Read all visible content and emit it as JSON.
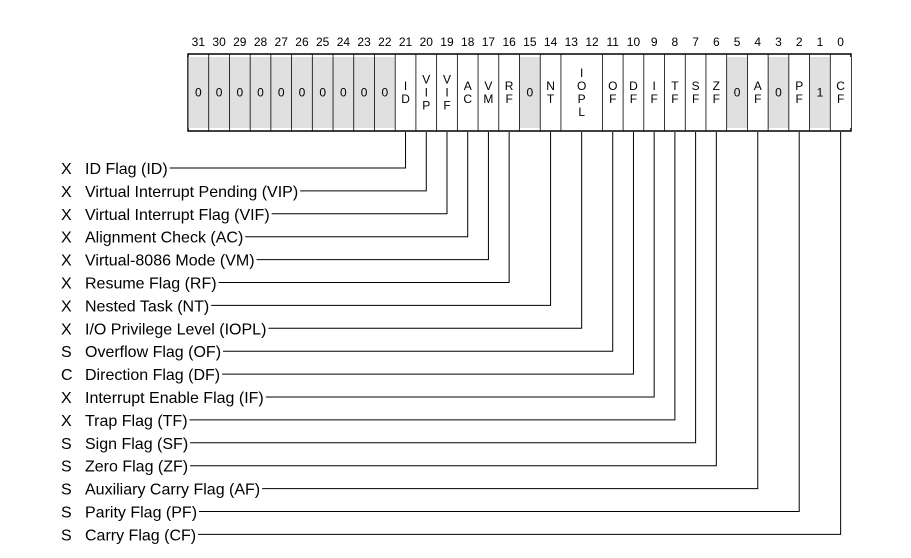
{
  "bit_numbers": [
    "31",
    "30",
    "29",
    "28",
    "27",
    "26",
    "25",
    "24",
    "23",
    "22",
    "21",
    "20",
    "19",
    "18",
    "17",
    "16",
    "15",
    "14",
    "13",
    "12",
    "11",
    "10",
    "9",
    "8",
    "7",
    "6",
    "5",
    "4",
    "3",
    "2",
    "1",
    "0"
  ],
  "cells": [
    {
      "bit": 31,
      "text": "0",
      "reserved": true
    },
    {
      "bit": 30,
      "text": "0",
      "reserved": true
    },
    {
      "bit": 29,
      "text": "0",
      "reserved": true
    },
    {
      "bit": 28,
      "text": "0",
      "reserved": true
    },
    {
      "bit": 27,
      "text": "0",
      "reserved": true
    },
    {
      "bit": 26,
      "text": "0",
      "reserved": true
    },
    {
      "bit": 25,
      "text": "0",
      "reserved": true
    },
    {
      "bit": 24,
      "text": "0",
      "reserved": true
    },
    {
      "bit": 23,
      "text": "0",
      "reserved": true
    },
    {
      "bit": 22,
      "text": "0",
      "reserved": true
    },
    {
      "bit": 21,
      "text": "ID",
      "reserved": false,
      "stacked": [
        "I",
        "D"
      ]
    },
    {
      "bit": 20,
      "text": "VIP",
      "reserved": false,
      "stacked": [
        "V",
        "I",
        "P"
      ]
    },
    {
      "bit": 19,
      "text": "VIF",
      "reserved": false,
      "stacked": [
        "V",
        "I",
        "F"
      ]
    },
    {
      "bit": 18,
      "text": "AC",
      "reserved": false,
      "stacked": [
        "A",
        "C"
      ]
    },
    {
      "bit": 17,
      "text": "VM",
      "reserved": false,
      "stacked": [
        "V",
        "M"
      ]
    },
    {
      "bit": 16,
      "text": "RF",
      "reserved": false,
      "stacked": [
        "R",
        "F"
      ]
    },
    {
      "bit": 15,
      "text": "0",
      "reserved": true
    },
    {
      "bit": 14,
      "text": "NT",
      "reserved": false,
      "stacked": [
        "N",
        "T"
      ]
    },
    {
      "bit": 13,
      "text": "IOPL",
      "reserved": false,
      "stacked": [
        "I",
        "O",
        "P",
        "L"
      ],
      "span": 2
    },
    {
      "bit": 11,
      "text": "OF",
      "reserved": false,
      "stacked": [
        "O",
        "F"
      ]
    },
    {
      "bit": 10,
      "text": "DF",
      "reserved": false,
      "stacked": [
        "D",
        "F"
      ]
    },
    {
      "bit": 9,
      "text": "IF",
      "reserved": false,
      "stacked": [
        "I",
        "F"
      ]
    },
    {
      "bit": 8,
      "text": "TF",
      "reserved": false,
      "stacked": [
        "T",
        "F"
      ]
    },
    {
      "bit": 7,
      "text": "SF",
      "reserved": false,
      "stacked": [
        "S",
        "F"
      ]
    },
    {
      "bit": 6,
      "text": "ZF",
      "reserved": false,
      "stacked": [
        "Z",
        "F"
      ]
    },
    {
      "bit": 5,
      "text": "0",
      "reserved": true
    },
    {
      "bit": 4,
      "text": "AF",
      "reserved": false,
      "stacked": [
        "A",
        "F"
      ]
    },
    {
      "bit": 3,
      "text": "0",
      "reserved": true
    },
    {
      "bit": 2,
      "text": "PF",
      "reserved": false,
      "stacked": [
        "P",
        "F"
      ]
    },
    {
      "bit": 1,
      "text": "1",
      "reserved": true
    },
    {
      "bit": 0,
      "text": "CF",
      "reserved": false,
      "stacked": [
        "C",
        "F"
      ]
    }
  ],
  "flags": [
    {
      "type": "X",
      "label": "ID Flag (ID)",
      "bit": 21
    },
    {
      "type": "X",
      "label": "Virtual Interrupt Pending (VIP)",
      "bit": 20
    },
    {
      "type": "X",
      "label": "Virtual Interrupt Flag (VIF)",
      "bit": 19
    },
    {
      "type": "X",
      "label": "Alignment Check (AC)",
      "bit": 18
    },
    {
      "type": "X",
      "label": "Virtual-8086 Mode (VM)",
      "bit": 17
    },
    {
      "type": "X",
      "label": "Resume Flag (RF)",
      "bit": 16
    },
    {
      "type": "X",
      "label": "Nested Task (NT)",
      "bit": 14
    },
    {
      "type": "X",
      "label": "I/O Privilege Level (IOPL)",
      "bit": 12.5
    },
    {
      "type": "S",
      "label": "Overflow Flag (OF)",
      "bit": 11
    },
    {
      "type": "C",
      "label": "Direction Flag (DF)",
      "bit": 10
    },
    {
      "type": "X",
      "label": "Interrupt Enable Flag (IF)",
      "bit": 9
    },
    {
      "type": "X",
      "label": "Trap Flag (TF)",
      "bit": 8
    },
    {
      "type": "S",
      "label": "Sign Flag (SF)",
      "bit": 7
    },
    {
      "type": "S",
      "label": "Zero Flag (ZF)",
      "bit": 6
    },
    {
      "type": "S",
      "label": "Auxiliary Carry Flag (AF)",
      "bit": 4
    },
    {
      "type": "S",
      "label": "Parity Flag (PF)",
      "bit": 2
    },
    {
      "type": "S",
      "label": "Carry Flag (CF)",
      "bit": 0
    }
  ],
  "colors": {
    "reserved_fill": "#e0e0e0",
    "flag_fill": "#ffffff",
    "stroke": "#000000"
  }
}
